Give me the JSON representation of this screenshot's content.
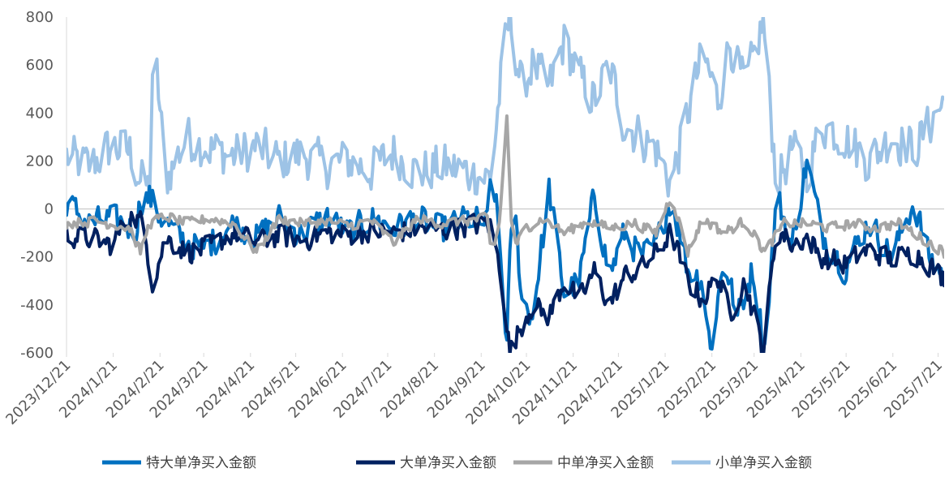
{
  "chart_data": {
    "type": "line",
    "title": "",
    "xlabel": "",
    "ylabel": "",
    "ylim": [
      -600,
      800
    ],
    "yticks": [
      -600,
      -400,
      -200,
      0,
      200,
      400,
      600,
      800
    ],
    "x_range": [
      "2023-12-21",
      "2025-07-25"
    ],
    "xtick_labels": [
      "2023/12/21",
      "2024/1/21",
      "2024/2/21",
      "2024/3/21",
      "2024/4/21",
      "2024/5/21",
      "2024/6/21",
      "2024/7/21",
      "2024/8/21",
      "2024/9/21",
      "2024/10/21",
      "2024/11/21",
      "2024/12/21",
      "2025/1/21",
      "2025/2/21",
      "2025/3/21",
      "2025/4/21",
      "2025/5/21",
      "2025/6/21",
      "2025/7/21"
    ],
    "grid": false,
    "legend_position": "bottom",
    "series": [
      {
        "name": "特大单净买入金额",
        "color": "#0070C0",
        "keypoints": [
          [
            "2023-12-21",
            30
          ],
          [
            "2024-01-05",
            -60
          ],
          [
            "2024-01-20",
            -40
          ],
          [
            "2024-02-05",
            -90
          ],
          [
            "2024-02-08",
            40
          ],
          [
            "2024-02-14",
            50
          ],
          [
            "2024-02-20",
            -20
          ],
          [
            "2024-03-05",
            -120
          ],
          [
            "2024-03-20",
            -170
          ],
          [
            "2024-04-10",
            -60
          ],
          [
            "2024-04-25",
            -120
          ],
          [
            "2024-05-10",
            -40
          ],
          [
            "2024-05-25",
            -110
          ],
          [
            "2024-06-10",
            -30
          ],
          [
            "2024-06-25",
            -100
          ],
          [
            "2024-07-10",
            -40
          ],
          [
            "2024-07-25",
            -80
          ],
          [
            "2024-08-10",
            -40
          ],
          [
            "2024-08-25",
            -90
          ],
          [
            "2024-09-10",
            -40
          ],
          [
            "2024-09-25",
            -60
          ],
          [
            "2024-09-28",
            200
          ],
          [
            "2024-10-03",
            -120
          ],
          [
            "2024-10-08",
            -560
          ],
          [
            "2024-10-12",
            100
          ],
          [
            "2024-10-18",
            -380
          ],
          [
            "2024-10-25",
            -450
          ],
          [
            "2024-11-05",
            80
          ],
          [
            "2024-11-15",
            -350
          ],
          [
            "2024-11-25",
            -300
          ],
          [
            "2024-12-05",
            60
          ],
          [
            "2024-12-15",
            -280
          ],
          [
            "2024-12-25",
            -100
          ],
          [
            "2025-01-05",
            -200
          ],
          [
            "2025-01-15",
            -150
          ],
          [
            "2025-01-25",
            50
          ],
          [
            "2025-02-05",
            -250
          ],
          [
            "2025-02-15",
            -300
          ],
          [
            "2025-02-20",
            -590
          ],
          [
            "2025-03-01",
            -200
          ],
          [
            "2025-03-10",
            -450
          ],
          [
            "2025-03-20",
            -250
          ],
          [
            "2025-03-28",
            -580
          ],
          [
            "2025-04-05",
            60
          ],
          [
            "2025-04-15",
            -150
          ],
          [
            "2025-04-25",
            200
          ],
          [
            "2025-05-05",
            -100
          ],
          [
            "2025-05-20",
            -250
          ],
          [
            "2025-06-05",
            -50
          ],
          [
            "2025-06-20",
            -200
          ],
          [
            "2025-07-05",
            30
          ],
          [
            "2025-07-15",
            -200
          ],
          [
            "2025-07-25",
            -280
          ]
        ],
        "amplitude": 70
      },
      {
        "name": "大单净买入金额",
        "color": "#002060",
        "keypoints": [
          [
            "2023-12-21",
            -110
          ],
          [
            "2024-01-05",
            -120
          ],
          [
            "2024-01-20",
            -150
          ],
          [
            "2024-02-01",
            -30
          ],
          [
            "2024-02-10",
            -60
          ],
          [
            "2024-02-16",
            -310
          ],
          [
            "2024-02-25",
            -120
          ],
          [
            "2024-03-10",
            -180
          ],
          [
            "2024-03-25",
            -160
          ],
          [
            "2024-04-10",
            -100
          ],
          [
            "2024-04-25",
            -140
          ],
          [
            "2024-05-10",
            -110
          ],
          [
            "2024-05-25",
            -130
          ],
          [
            "2024-06-10",
            -100
          ],
          [
            "2024-06-25",
            -110
          ],
          [
            "2024-07-10",
            -90
          ],
          [
            "2024-07-25",
            -100
          ],
          [
            "2024-08-10",
            -80
          ],
          [
            "2024-08-25",
            -90
          ],
          [
            "2024-09-10",
            -70
          ],
          [
            "2024-09-25",
            -60
          ],
          [
            "2024-09-28",
            -80
          ],
          [
            "2024-10-05",
            -300
          ],
          [
            "2024-10-10",
            -600
          ],
          [
            "2024-10-18",
            -480
          ],
          [
            "2024-10-25",
            -400
          ],
          [
            "2024-11-05",
            -450
          ],
          [
            "2024-11-15",
            -300
          ],
          [
            "2024-11-25",
            -380
          ],
          [
            "2024-12-05",
            -260
          ],
          [
            "2024-12-15",
            -400
          ],
          [
            "2024-12-25",
            -280
          ],
          [
            "2025-01-05",
            -250
          ],
          [
            "2025-01-15",
            -180
          ],
          [
            "2025-01-25",
            -100
          ],
          [
            "2025-02-05",
            -300
          ],
          [
            "2025-02-15",
            -380
          ],
          [
            "2025-02-25",
            -280
          ],
          [
            "2025-03-05",
            -440
          ],
          [
            "2025-03-15",
            -300
          ],
          [
            "2025-03-27",
            -590
          ],
          [
            "2025-04-05",
            -80
          ],
          [
            "2025-04-15",
            -150
          ],
          [
            "2025-04-25",
            -120
          ],
          [
            "2025-05-05",
            -200
          ],
          [
            "2025-05-20",
            -230
          ],
          [
            "2025-06-05",
            -170
          ],
          [
            "2025-06-20",
            -210
          ],
          [
            "2025-07-05",
            -180
          ],
          [
            "2025-07-15",
            -230
          ],
          [
            "2025-07-25",
            -290
          ]
        ],
        "amplitude": 55
      },
      {
        "name": "中单净买入金额",
        "color": "#A6A6A6",
        "keypoints": [
          [
            "2023-12-21",
            -60
          ],
          [
            "2024-01-10",
            -50
          ],
          [
            "2024-02-01",
            -80
          ],
          [
            "2024-02-08",
            -180
          ],
          [
            "2024-02-14",
            -60
          ],
          [
            "2024-02-25",
            -30
          ],
          [
            "2024-03-10",
            -60
          ],
          [
            "2024-03-25",
            -40
          ],
          [
            "2024-04-10",
            -60
          ],
          [
            "2024-04-25",
            -180
          ],
          [
            "2024-05-10",
            -40
          ],
          [
            "2024-05-25",
            -60
          ],
          [
            "2024-06-10",
            -50
          ],
          [
            "2024-06-25",
            -70
          ],
          [
            "2024-07-10",
            -50
          ],
          [
            "2024-07-25",
            -140
          ],
          [
            "2024-08-10",
            -40
          ],
          [
            "2024-08-25",
            -60
          ],
          [
            "2024-09-10",
            -50
          ],
          [
            "2024-09-25",
            -40
          ],
          [
            "2024-09-28",
            -200
          ],
          [
            "2024-10-03",
            -60
          ],
          [
            "2024-10-08",
            380
          ],
          [
            "2024-10-12",
            -180
          ],
          [
            "2024-10-20",
            -80
          ],
          [
            "2024-11-01",
            -40
          ],
          [
            "2024-11-15",
            -100
          ],
          [
            "2024-12-01",
            -50
          ],
          [
            "2024-12-15",
            -80
          ],
          [
            "2025-01-01",
            -60
          ],
          [
            "2025-01-15",
            -100
          ],
          [
            "2025-01-25",
            60
          ],
          [
            "2025-02-05",
            -180
          ],
          [
            "2025-02-15",
            -40
          ],
          [
            "2025-03-01",
            -100
          ],
          [
            "2025-03-15",
            -50
          ],
          [
            "2025-03-28",
            -180
          ],
          [
            "2025-04-10",
            -60
          ],
          [
            "2025-04-25",
            -60
          ],
          [
            "2025-05-10",
            -80
          ],
          [
            "2025-05-25",
            -60
          ],
          [
            "2025-06-10",
            -80
          ],
          [
            "2025-06-25",
            -60
          ],
          [
            "2025-07-10",
            -120
          ],
          [
            "2025-07-25",
            -180
          ]
        ],
        "amplitude": 25
      },
      {
        "name": "小单净买入金额",
        "color": "#9DC3E6",
        "keypoints": [
          [
            "2023-12-21",
            220
          ],
          [
            "2024-01-05",
            180
          ],
          [
            "2024-01-20",
            260
          ],
          [
            "2024-02-01",
            240
          ],
          [
            "2024-02-08",
            120
          ],
          [
            "2024-02-14",
            80
          ],
          [
            "2024-02-17",
            700
          ],
          [
            "2024-02-25",
            120
          ],
          [
            "2024-03-10",
            300
          ],
          [
            "2024-03-25",
            250
          ],
          [
            "2024-04-10",
            220
          ],
          [
            "2024-04-25",
            260
          ],
          [
            "2024-05-10",
            200
          ],
          [
            "2024-05-25",
            230
          ],
          [
            "2024-06-10",
            180
          ],
          [
            "2024-06-25",
            200
          ],
          [
            "2024-07-10",
            160
          ],
          [
            "2024-07-25",
            240
          ],
          [
            "2024-08-10",
            150
          ],
          [
            "2024-08-25",
            180
          ],
          [
            "2024-09-10",
            160
          ],
          [
            "2024-09-25",
            130
          ],
          [
            "2024-09-28",
            150
          ],
          [
            "2024-10-05",
            600
          ],
          [
            "2024-10-10",
            800
          ],
          [
            "2024-10-18",
            500
          ],
          [
            "2024-10-25",
            600
          ],
          [
            "2024-11-05",
            500
          ],
          [
            "2024-11-15",
            700
          ],
          [
            "2024-11-25",
            550
          ],
          [
            "2024-12-05",
            450
          ],
          [
            "2024-12-15",
            600
          ],
          [
            "2024-12-25",
            350
          ],
          [
            "2025-01-05",
            300
          ],
          [
            "2025-01-15",
            250
          ],
          [
            "2025-01-25",
            100
          ],
          [
            "2025-02-05",
            400
          ],
          [
            "2025-02-15",
            650
          ],
          [
            "2025-02-25",
            450
          ],
          [
            "2025-03-05",
            700
          ],
          [
            "2025-03-15",
            500
          ],
          [
            "2025-03-27",
            780
          ],
          [
            "2025-04-05",
            100
          ],
          [
            "2025-04-15",
            250
          ],
          [
            "2025-04-25",
            150
          ],
          [
            "2025-05-05",
            350
          ],
          [
            "2025-05-20",
            300
          ],
          [
            "2025-06-05",
            200
          ],
          [
            "2025-06-20",
            300
          ],
          [
            "2025-07-05",
            250
          ],
          [
            "2025-07-15",
            350
          ],
          [
            "2025-07-25",
            450
          ]
        ],
        "amplitude": 110
      }
    ]
  }
}
